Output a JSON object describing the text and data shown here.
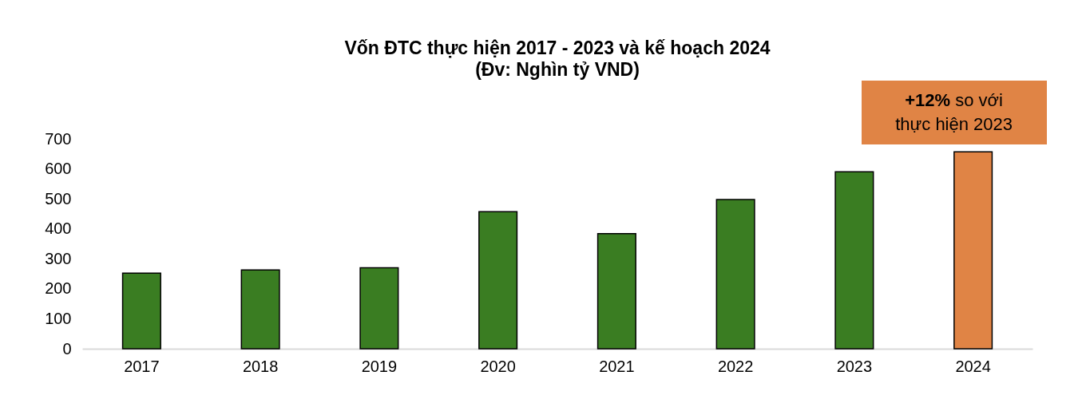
{
  "chart_data": {
    "type": "bar",
    "title": "Vốn ĐTC thực hiện 2017 - 2023 và kế hoạch 2024",
    "subtitle": "(Đv: Nghìn tỷ VND)",
    "categories": [
      "2017",
      "2018",
      "2019",
      "2020",
      "2021",
      "2022",
      "2023",
      "2024"
    ],
    "values": [
      252,
      263,
      270,
      457,
      384,
      498,
      590,
      657
    ],
    "colors": [
      "#3a7d22",
      "#3a7d22",
      "#3a7d22",
      "#3a7d22",
      "#3a7d22",
      "#3a7d22",
      "#3a7d22",
      "#e08445"
    ],
    "ylim": [
      0,
      700
    ],
    "yticks": [
      0,
      100,
      200,
      300,
      400,
      500,
      600,
      700
    ],
    "grid": false,
    "legend": false,
    "annotations": [
      "+12% so với thực hiện 2023"
    ]
  }
}
